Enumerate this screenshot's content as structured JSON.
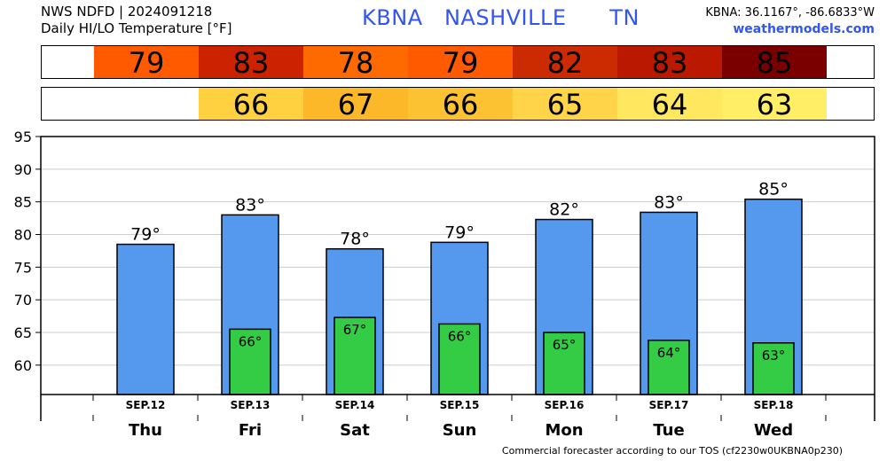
{
  "header": {
    "line1": "NWS NDFD | 2024091218",
    "line2": "Daily HI/LO Temperature [°F]",
    "title": "KBNA   NASHVILLE      TN",
    "coords": "KBNA: 36.1167°, -86.6833°W",
    "site": "weathermodels.com"
  },
  "footer": "Commercial forecaster according to our TOS (cf2230w0UKBNA0p230)",
  "colors": {
    "hi_bar": "#5599ee",
    "lo_bar": "#33cc44"
  },
  "hi_strip": [
    {
      "value": "79",
      "color": "#ff5a00"
    },
    {
      "value": "83",
      "color": "#cc2200"
    },
    {
      "value": "78",
      "color": "#ff6a00"
    },
    {
      "value": "79",
      "color": "#ff5a00"
    },
    {
      "value": "82",
      "color": "#cc2a00"
    },
    {
      "value": "83",
      "color": "#bb1800"
    },
    {
      "value": "85",
      "color": "#7a0000"
    }
  ],
  "lo_strip": [
    {
      "value": "",
      "color": "#ffffff"
    },
    {
      "value": "66",
      "color": "#ffd040"
    },
    {
      "value": "67",
      "color": "#fcb828"
    },
    {
      "value": "66",
      "color": "#fcc232"
    },
    {
      "value": "65",
      "color": "#ffd448"
    },
    {
      "value": "64",
      "color": "#ffe860"
    },
    {
      "value": "63",
      "color": "#ffee66"
    }
  ],
  "chart_data": {
    "type": "bar",
    "categories": [
      "Thu",
      "Fri",
      "Sat",
      "Sun",
      "Mon",
      "Tue",
      "Wed"
    ],
    "dates": [
      "SEP.12",
      "SEP.13",
      "SEP.14",
      "SEP.15",
      "SEP.16",
      "SEP.17",
      "SEP.18"
    ],
    "series": [
      {
        "values": [
          78.5,
          83.0,
          77.8,
          78.8,
          82.3,
          83.4,
          85.4
        ],
        "labels": [
          "79°",
          "83°",
          "78°",
          "79°",
          "82°",
          "83°",
          "85°"
        ]
      },
      {
        "values": [
          null,
          65.5,
          67.3,
          66.3,
          65.0,
          63.8,
          63.4
        ],
        "labels": [
          "",
          "66°",
          "67°",
          "66°",
          "65°",
          "64°",
          "63°"
        ]
      }
    ],
    "yticks": [
      60,
      65,
      70,
      75,
      80,
      85,
      90,
      95
    ],
    "ylim": [
      55.5,
      95
    ],
    "grid": true
  }
}
